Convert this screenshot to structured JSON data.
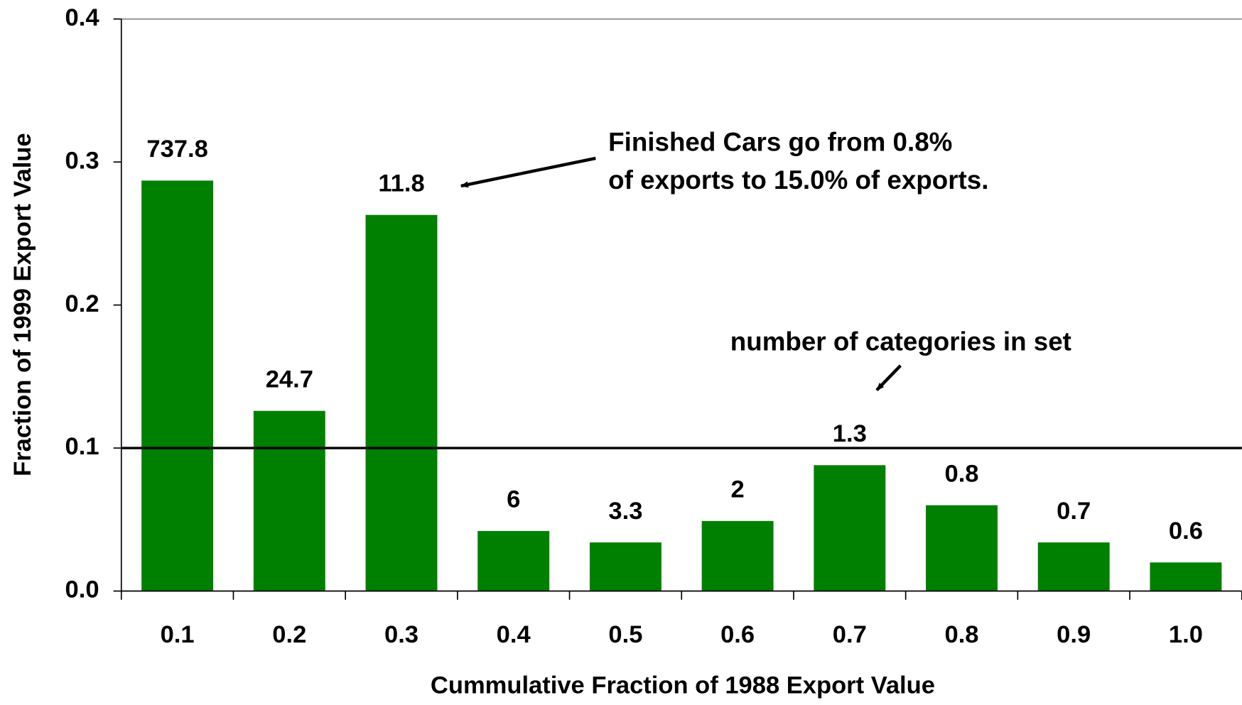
{
  "chart_data": {
    "type": "bar",
    "xlabel": "Cummulative Fraction of 1988 Export Value",
    "ylabel": "Fraction of 1999 Export Value",
    "categories": [
      "0.1",
      "0.2",
      "0.3",
      "0.4",
      "0.5",
      "0.6",
      "0.7",
      "0.8",
      "0.9",
      "1.0"
    ],
    "values": [
      0.287,
      0.126,
      0.263,
      0.042,
      0.034,
      0.049,
      0.088,
      0.06,
      0.034,
      0.02
    ],
    "category_counts": [
      737.8,
      24.7,
      11.8,
      6,
      3.3,
      2,
      1.3,
      0.8,
      0.7,
      0.6
    ],
    "color": "#008000",
    "ylim": [
      0,
      0.4
    ],
    "yticks": [
      {
        "value": 0,
        "label": "0.0"
      },
      {
        "value": 0.1,
        "label": "0.1"
      },
      {
        "value": 0.2,
        "label": "0.2"
      },
      {
        "value": 0.3,
        "label": "0.3"
      },
      {
        "value": 0.4,
        "label": "0.4"
      }
    ],
    "reference_line": 0.1,
    "annotations": {
      "finished_cars": [
        "Finished Cars go from 0.8%",
        "of exports to 15.0% of exports."
      ],
      "categories_note": "number of categories in set"
    }
  }
}
